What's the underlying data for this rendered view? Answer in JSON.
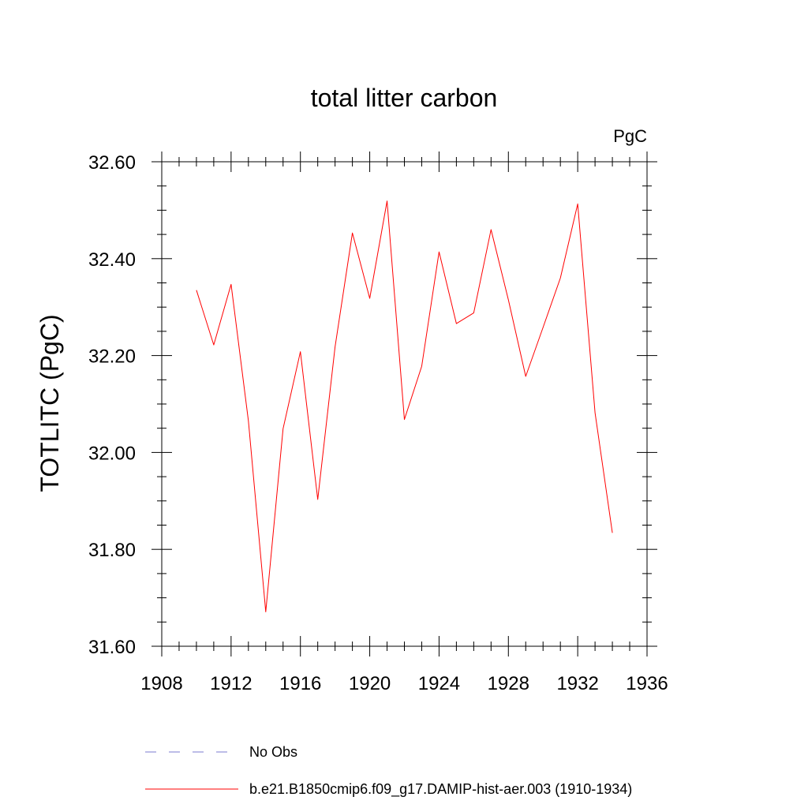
{
  "chart_data": {
    "type": "line",
    "title": "total litter carbon",
    "units": "PgC",
    "ylabel": "TOTLITC  (PgC)",
    "xlim": [
      1908,
      1936
    ],
    "ylim": [
      31.6,
      32.6
    ],
    "x_ticks": [
      1908,
      1912,
      1916,
      1920,
      1924,
      1928,
      1932,
      1936
    ],
    "x_tick_labels": [
      "1908",
      "1912",
      "1916",
      "1920",
      "1924",
      "1928",
      "1932",
      "1936"
    ],
    "y_ticks": [
      31.6,
      31.8,
      32.0,
      32.2,
      32.4,
      32.6
    ],
    "y_tick_labels": [
      "31.60",
      "31.80",
      "32.00",
      "32.20",
      "32.40",
      "32.60"
    ],
    "grid": false,
    "legend_position": "bottom",
    "series": [
      {
        "name": "b.e21.B1850cmip6.f09_g17.DAMIP-hist-aer.003 (1910-1934)",
        "color": "#ff0000",
        "style": "solid",
        "x": [
          1910,
          1911,
          1912,
          1913,
          1914,
          1915,
          1916,
          1917,
          1918,
          1919,
          1920,
          1921,
          1922,
          1923,
          1924,
          1925,
          1926,
          1927,
          1928,
          1929,
          1930,
          1931,
          1932,
          1933,
          1934
        ],
        "values": [
          32.335,
          32.222,
          32.347,
          32.065,
          31.671,
          32.049,
          32.208,
          31.903,
          32.218,
          32.453,
          32.318,
          32.519,
          32.068,
          32.178,
          32.414,
          32.266,
          32.288,
          32.46,
          32.315,
          32.157,
          32.258,
          32.36,
          32.513,
          32.082,
          31.834
        ]
      },
      {
        "name": "No Obs",
        "color": "#7b7bd0",
        "style": "dashed",
        "x": [],
        "values": []
      }
    ]
  }
}
